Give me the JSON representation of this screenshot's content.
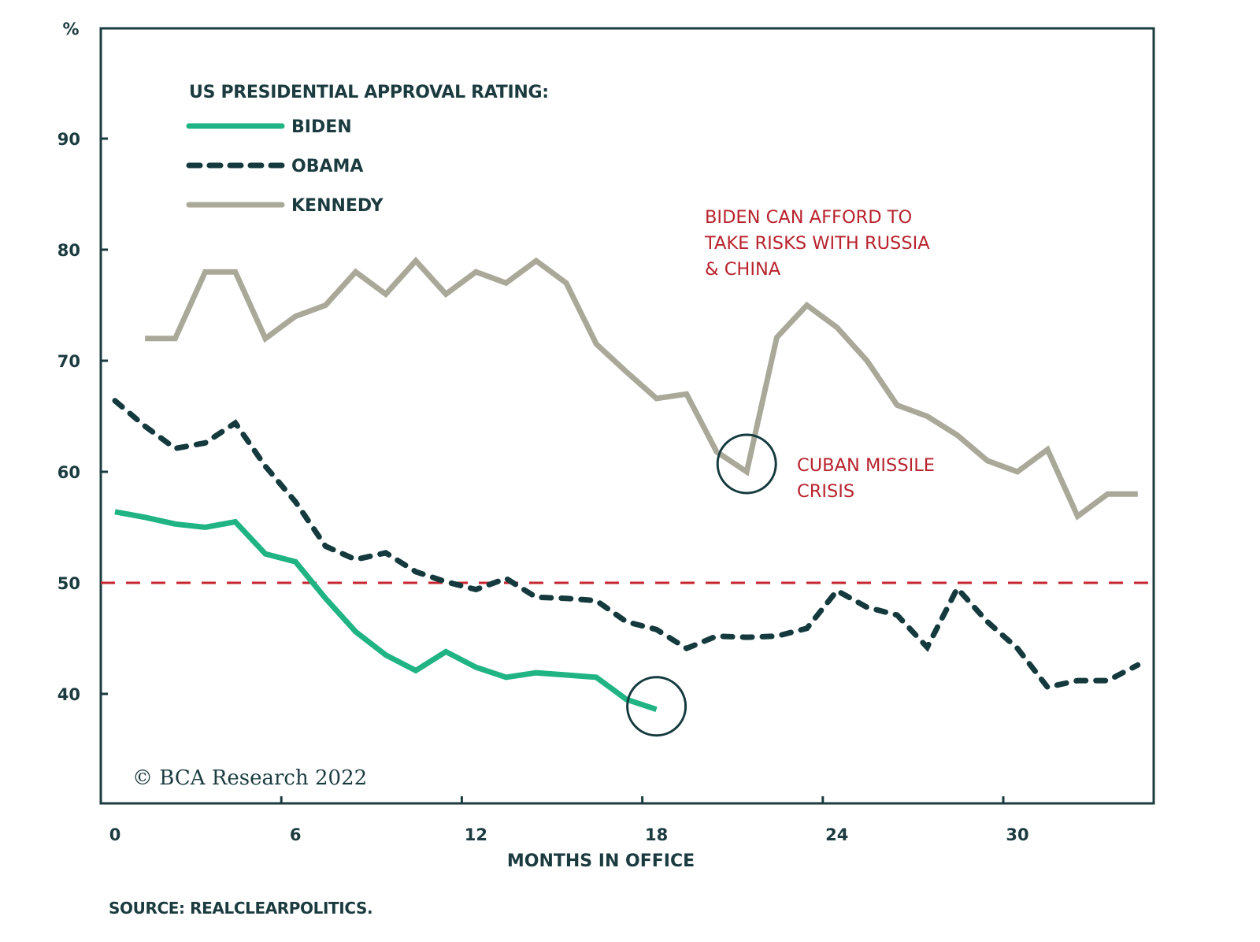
{
  "chart_data": {
    "type": "line",
    "title": "US PRESIDENTIAL APPROVAL RATING:",
    "ylabel": "%",
    "xlabel": "MONTHS IN OFFICE",
    "xlim": [
      0,
      35
    ],
    "ylim": [
      30,
      100
    ],
    "x_ticks": [
      0,
      6,
      12,
      18,
      24,
      30
    ],
    "y_ticks": [
      40,
      50,
      60,
      70,
      80,
      90
    ],
    "grid": false,
    "legend_position": "top-left",
    "reference_line": {
      "y": 50,
      "color": "#c6262e",
      "style": "dashed"
    },
    "series": [
      {
        "name": "BIDEN",
        "color": "#20b383",
        "style": "solid",
        "x": [
          0,
          1,
          2,
          3,
          4,
          5,
          6,
          7,
          8,
          9,
          10,
          11,
          12,
          13,
          14,
          15,
          16,
          17,
          18
        ],
        "values": [
          56.4,
          55.9,
          55.3,
          55.0,
          55.5,
          52.6,
          51.9,
          48.6,
          45.6,
          43.5,
          42.1,
          43.8,
          42.4,
          41.5,
          41.9,
          41.7,
          41.5,
          39.5,
          38.6
        ]
      },
      {
        "name": "OBAMA",
        "color": "#153a3e",
        "style": "dashed",
        "x": [
          0,
          1,
          2,
          3,
          4,
          5,
          6,
          7,
          8,
          9,
          10,
          11,
          12,
          13,
          14,
          15,
          16,
          17,
          18,
          19,
          20,
          21,
          22,
          23,
          24,
          25,
          26,
          27,
          28,
          29,
          30,
          31,
          32,
          33,
          34
        ],
        "values": [
          66.4,
          64.1,
          62.1,
          62.6,
          64.4,
          60.5,
          57.3,
          53.3,
          52.1,
          52.7,
          51.0,
          50.1,
          49.4,
          50.4,
          48.7,
          48.6,
          48.4,
          46.5,
          45.8,
          44.1,
          45.2,
          45.1,
          45.2,
          45.9,
          49.3,
          47.8,
          47.1,
          44.2,
          49.5,
          46.5,
          44.1,
          40.6,
          41.2,
          41.2,
          42.6
        ]
      },
      {
        "name": "KENNEDY",
        "color": "#a9a899",
        "style": "solid",
        "x": [
          1,
          2,
          3,
          4,
          5,
          6,
          7,
          8,
          9,
          10,
          11,
          12,
          13,
          14,
          15,
          16,
          17,
          18,
          19,
          20,
          21,
          22,
          23,
          24,
          25,
          26,
          27,
          28,
          29,
          30,
          31,
          32,
          33,
          34
        ],
        "values": [
          72,
          72,
          78,
          78,
          72,
          74,
          75,
          78,
          76,
          79,
          76,
          78,
          77,
          79,
          77,
          71.5,
          69,
          66.6,
          67,
          61.8,
          60,
          72.1,
          75,
          73,
          70,
          66,
          65,
          63.3,
          61,
          60,
          62,
          56,
          58,
          58
        ]
      }
    ],
    "annotations": [
      {
        "lines": [
          "BIDEN CAN AFFORD TO",
          "TAKE RISKS WITH RUSSIA",
          "& CHINA"
        ],
        "color": "#b8232e"
      },
      {
        "lines": [
          "CUBAN MISSILE",
          "CRISIS"
        ],
        "color": "#b8232e",
        "circle_at": {
          "series": "KENNEDY",
          "x": 21,
          "y": 60
        }
      }
    ],
    "highlight_circles": [
      {
        "series": "KENNEDY",
        "x": 21,
        "y": 60
      },
      {
        "series": "BIDEN",
        "x": 18,
        "y": 38.6
      }
    ],
    "copyright": "© BCA Research 2022",
    "source": "SOURCE: REALCLEARPOLITICS."
  },
  "colors": {
    "axis": "#1b3b3f",
    "text": "#1b3b3f",
    "annotation": "#b8232e"
  }
}
